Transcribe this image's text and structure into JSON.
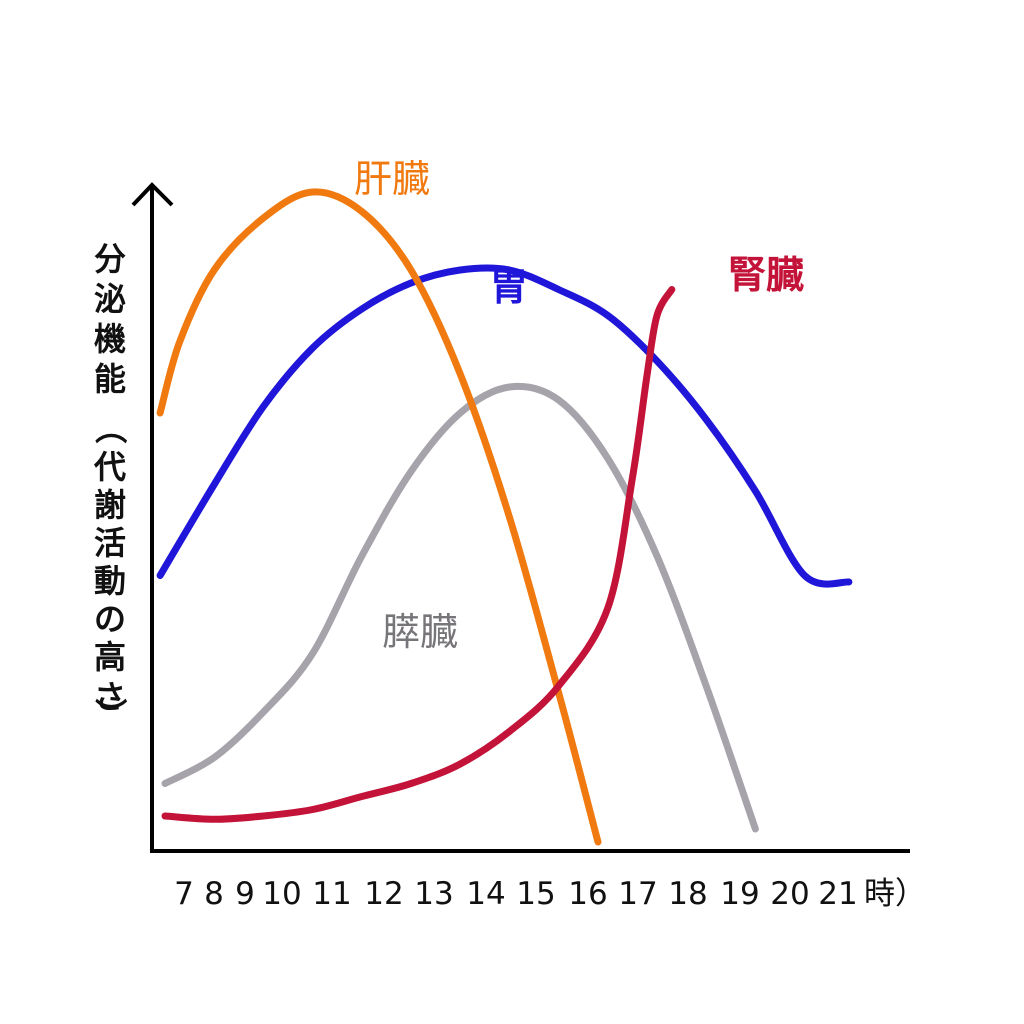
{
  "chart_data": {
    "type": "line",
    "ylabel": "分泌機能（代謝活動の高さ）",
    "categories": [
      "7",
      "8",
      "9",
      "10",
      "11",
      "12",
      "13",
      "14",
      "15",
      "16",
      "17",
      "18",
      "19",
      "20",
      "21"
    ],
    "x_unit": "時）",
    "ylim": [
      0,
      100
    ],
    "grid": false,
    "legend": "inline labels",
    "series": [
      {
        "name": "肝臓",
        "color": "#f07a10",
        "points": [
          [
            6.9,
            66
          ],
          [
            7.3,
            77
          ],
          [
            8,
            88
          ],
          [
            9,
            96
          ],
          [
            10,
            100
          ],
          [
            11,
            97
          ],
          [
            12,
            88
          ],
          [
            13,
            72
          ],
          [
            14,
            50
          ],
          [
            15,
            23
          ],
          [
            15.8,
            0
          ]
        ]
      },
      {
        "name": "胃",
        "color": "#1f16d9",
        "points": [
          [
            6.9,
            41
          ],
          [
            8,
            55
          ],
          [
            9,
            67
          ],
          [
            10,
            76
          ],
          [
            11,
            82
          ],
          [
            12,
            86
          ],
          [
            13,
            88
          ],
          [
            14,
            88
          ],
          [
            15,
            85
          ],
          [
            16,
            81
          ],
          [
            17,
            74
          ],
          [
            18,
            65
          ],
          [
            19,
            54
          ],
          [
            20,
            41
          ],
          [
            20.9,
            40
          ]
        ]
      },
      {
        "name": "膵臓",
        "color": "#a6a3ab",
        "points": [
          [
            7,
            9
          ],
          [
            8,
            13
          ],
          [
            9,
            20
          ],
          [
            10,
            29
          ],
          [
            11,
            44
          ],
          [
            12,
            57
          ],
          [
            13,
            66
          ],
          [
            14,
            70
          ],
          [
            15,
            68
          ],
          [
            16,
            59
          ],
          [
            17,
            44
          ],
          [
            18,
            24
          ],
          [
            19,
            2
          ]
        ]
      },
      {
        "name": "腎臓",
        "color": "#c41338",
        "points": [
          [
            7,
            4
          ],
          [
            8,
            3.5
          ],
          [
            9,
            4
          ],
          [
            10,
            5
          ],
          [
            11,
            7
          ],
          [
            12,
            9
          ],
          [
            13,
            12
          ],
          [
            14,
            17
          ],
          [
            15,
            24
          ],
          [
            16,
            36
          ],
          [
            16.5,
            56
          ],
          [
            16.8,
            72
          ],
          [
            17,
            81
          ],
          [
            17.3,
            85
          ]
        ]
      }
    ]
  }
}
